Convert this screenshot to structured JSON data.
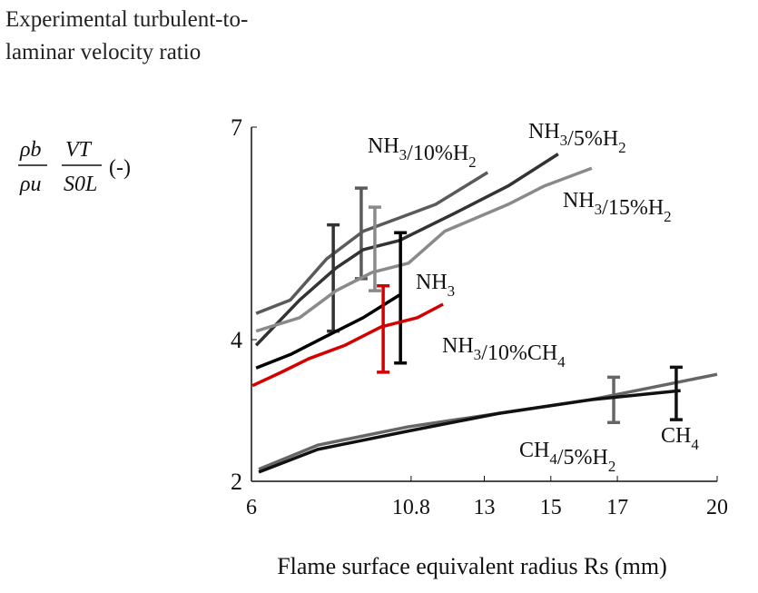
{
  "chart_data": {
    "type": "line",
    "y_label": "Experimental turbulent-to-laminar velocity ratio",
    "y_formula": {
      "num1": "ρb",
      "den1": "ρu",
      "num2": "VT",
      "den2": "S0L",
      "unit": "(-)"
    },
    "x_label": "Flame surface equivalent radius Rs (mm)",
    "xlim": [
      6,
      20
    ],
    "xticks": [
      6,
      10.8,
      13,
      15,
      17,
      20
    ],
    "ylim": [
      2,
      7
    ],
    "yticks": [
      2,
      4,
      7
    ],
    "series": [
      {
        "name": "NH3/10%H2",
        "color": "#5a5a5a",
        "x": [
          6.14,
          7.17,
          8.26,
          9.36,
          10.45,
          11.54,
          13.1
        ],
        "values": [
          4.37,
          4.56,
          5.14,
          5.53,
          5.72,
          5.91,
          6.36
        ],
        "error_bar": {
          "x": 9.3,
          "value": 5.5,
          "error": 0.64
        }
      },
      {
        "name": "NH3/5%H2",
        "color": "#333333",
        "x": [
          6.14,
          7.45,
          8.54,
          9.36,
          10.45,
          12.09,
          13.72,
          15.22
        ],
        "values": [
          3.92,
          4.56,
          5.01,
          5.27,
          5.4,
          5.78,
          6.17,
          6.62
        ],
        "error_bar": {
          "x": 8.46,
          "value": 4.87,
          "error": 0.75
        }
      },
      {
        "name": "NH3/15%H2",
        "color": "#8a8a8a",
        "x": [
          6.14,
          7.45,
          8.54,
          9.63,
          10.72,
          11.81,
          13.72,
          14.81,
          16.23
        ],
        "values": [
          4.12,
          4.31,
          4.69,
          4.95,
          5.08,
          5.53,
          5.91,
          6.17,
          6.42
        ],
        "error_bar": {
          "x": 9.71,
          "value": 5.28,
          "error": 0.59
        }
      },
      {
        "name": "NH3",
        "color": "#000000",
        "x": [
          6.14,
          7.17,
          8.26,
          9.36,
          10.45
        ],
        "values": [
          3.6,
          3.79,
          4.05,
          4.31,
          4.63
        ],
        "error_bar": {
          "x": 10.48,
          "value": 4.59,
          "error": 0.92
        }
      },
      {
        "name": "NH3/10%CH4",
        "color": "#d40000",
        "x": [
          6.03,
          6.9,
          7.72,
          8.81,
          9.9,
          10.99,
          11.76
        ],
        "values": [
          3.35,
          3.54,
          3.73,
          3.92,
          4.18,
          4.31,
          4.5
        ],
        "error_bar": {
          "x": 9.96,
          "value": 4.15,
          "error": 0.61
        }
      },
      {
        "name": "CH4/5%H2",
        "color": "#666666",
        "x": [
          6.22,
          7.99,
          10.72,
          13.45,
          16.18,
          20
        ],
        "values": [
          2.17,
          2.51,
          2.77,
          2.96,
          3.15,
          3.51
        ],
        "error_bar": {
          "x": 16.89,
          "value": 3.15,
          "error": 0.32
        }
      },
      {
        "name": "CH4",
        "color": "#111111",
        "x": [
          6.22,
          7.99,
          10.72,
          13.45,
          16.18,
          18.9
        ],
        "values": [
          2.13,
          2.45,
          2.71,
          2.96,
          3.15,
          3.28
        ],
        "error_bar": {
          "x": 18.77,
          "value": 3.24,
          "error": 0.37
        }
      }
    ]
  }
}
